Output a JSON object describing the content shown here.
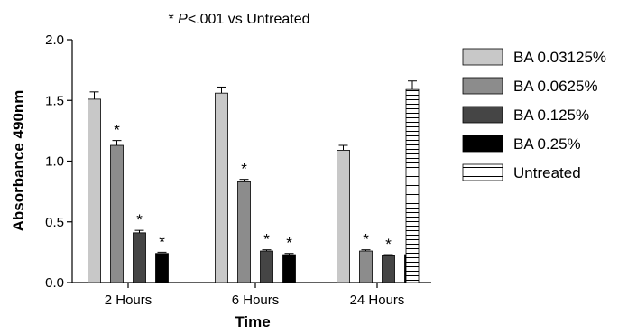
{
  "chart_data": {
    "type": "bar",
    "title": "* P<.001 vs Untreated",
    "title_parts": {
      "prefix": "* ",
      "italic": "P",
      "suffix": "<.001 vs Untreated"
    },
    "xlabel": "Time",
    "ylabel": "Absorbance 490nm",
    "ylim": [
      0,
      2.0
    ],
    "yticks": [
      0.0,
      0.5,
      1.0,
      1.5,
      2.0
    ],
    "ytick_labels": [
      "0.0",
      "0.5",
      "1.0",
      "1.5",
      "2.0"
    ],
    "categories": [
      "2 Hours",
      "6 Hours",
      "24 Hours"
    ],
    "legend_position": "right",
    "grid": false,
    "series": [
      {
        "name": "BA 0.03125%",
        "color": "#c8c8c8",
        "pattern": "solid",
        "values": [
          1.51,
          1.56,
          1.09
        ],
        "errors": [
          0.06,
          0.05,
          0.04
        ],
        "significant": [
          false,
          false,
          false
        ]
      },
      {
        "name": "BA 0.0625%",
        "color": "#8c8c8c",
        "pattern": "solid",
        "values": [
          1.13,
          0.83,
          0.26
        ],
        "errors": [
          0.04,
          0.02,
          0.01
        ],
        "significant": [
          true,
          true,
          true
        ]
      },
      {
        "name": "BA 0.125%",
        "color": "#454545",
        "pattern": "solid",
        "values": [
          0.41,
          0.26,
          0.22
        ],
        "errors": [
          0.02,
          0.01,
          0.01
        ],
        "significant": [
          true,
          true,
          true
        ]
      },
      {
        "name": "BA 0.25%",
        "color": "#000000",
        "pattern": "solid",
        "values": [
          0.24,
          0.23,
          0.23
        ],
        "errors": [
          0.01,
          0.01,
          0.01
        ],
        "significant": [
          true,
          true,
          true
        ]
      }
    ],
    "untreated": {
      "name": "Untreated",
      "color": "#ffffff",
      "pattern": "horizontal-stripes",
      "value": 1.59,
      "error": 0.07
    },
    "significance_marker": "*"
  }
}
